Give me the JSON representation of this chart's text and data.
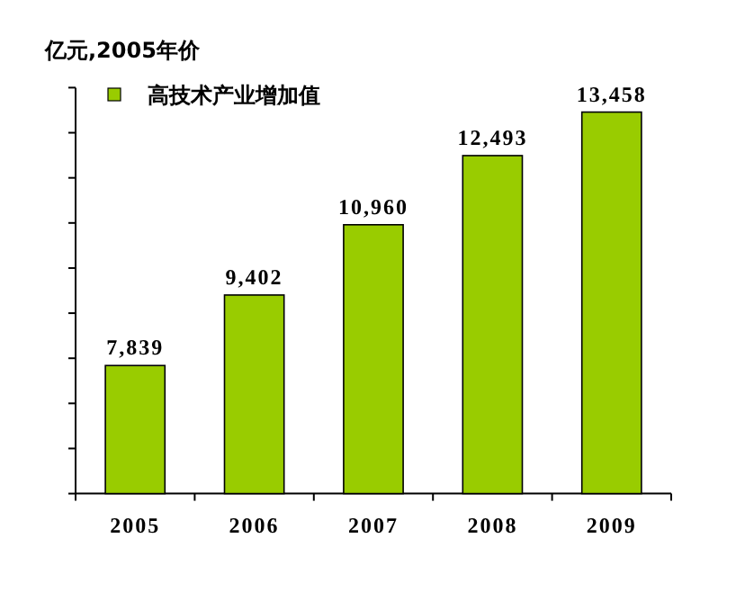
{
  "chart_data": {
    "type": "bar",
    "ylabel": "亿元,2005年价",
    "categories": [
      "2005",
      "2006",
      "2007",
      "2008",
      "2009"
    ],
    "series": [
      {
        "name": "高技术产业增加值",
        "color": "#99cc00",
        "values": [
          7839,
          9402,
          10960,
          12493,
          13458
        ],
        "value_labels": [
          "7,839",
          "9,402",
          "10,960",
          "12,493",
          "13,458"
        ]
      }
    ],
    "ylim": [
      5000,
      14000
    ],
    "yticks": [
      {
        "value": 5000,
        "label": null
      },
      {
        "value": 6000,
        "label": null
      },
      {
        "value": 7000,
        "label": null
      },
      {
        "value": 8000,
        "label": null
      },
      {
        "value": 9000,
        "label": null
      },
      {
        "value": 10000,
        "label": null
      },
      {
        "value": 11000,
        "label": null
      },
      {
        "value": 12000,
        "label": null
      },
      {
        "value": 13000,
        "label": null
      },
      {
        "value": 14000,
        "label": null
      }
    ],
    "legend": "top left",
    "tick_labels": "x"
  }
}
